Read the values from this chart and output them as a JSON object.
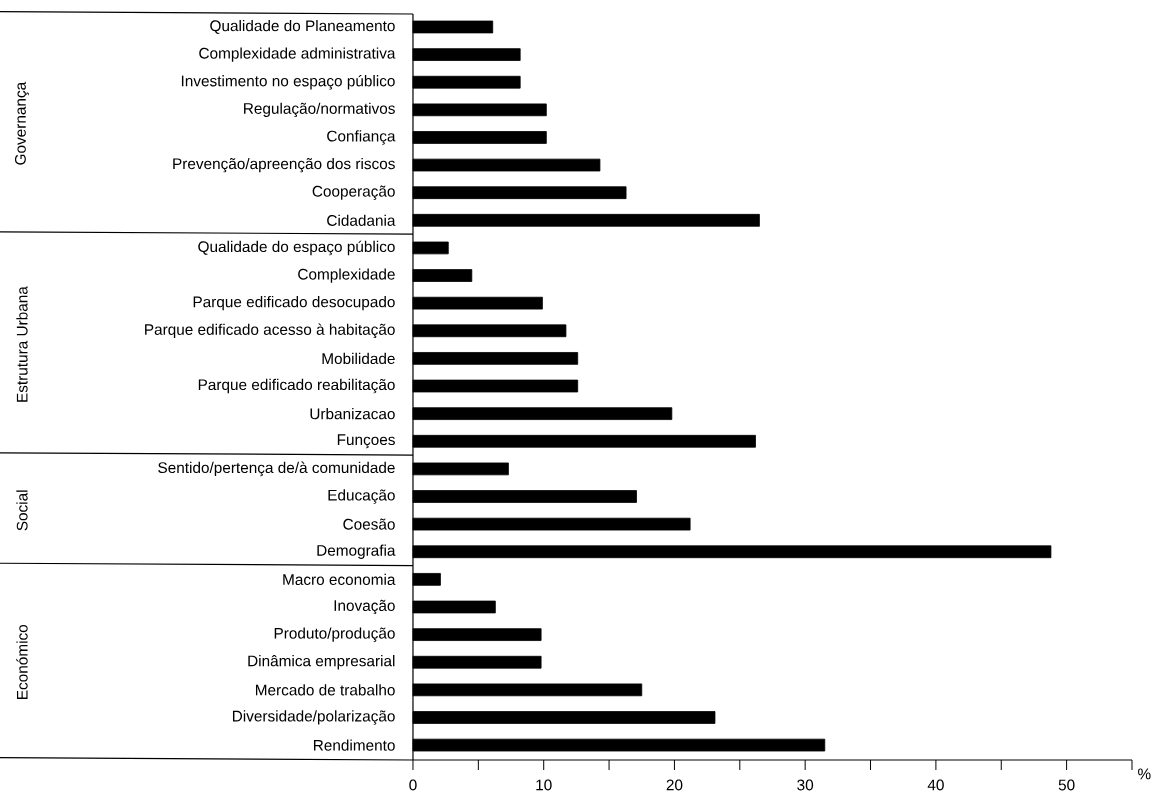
{
  "chart_data": {
    "type": "bar",
    "orientation": "horizontal",
    "xlabel": "%",
    "categories": [
      "Qualidade do Planeamento",
      "Complexidade administrativa",
      "Investimento no espaço público",
      "Regulação/normativos",
      "Confiança",
      "Prevenção/apreenção dos riscos",
      "Cooperação",
      "Cidadania",
      "Qualidade do espaço público",
      "Complexidade",
      "Parque edificado desocupado",
      "Parque edificado acesso à habitação",
      "Mobilidade",
      "Parque edificado reabilitação",
      "Urbanizacao",
      "Funçoes",
      "Sentido/pertença de/à comunidade",
      "Educação",
      "Coesão",
      "Demografia",
      "Macro economia",
      "Inovação",
      "Produto/produção",
      "Dinâmica empresarial",
      "Mercado de trabalho",
      "Diversidade/polarização",
      "Rendimento"
    ],
    "values": [
      6.1,
      8.2,
      8.2,
      10.2,
      10.2,
      14.3,
      16.3,
      26.5,
      2.7,
      4.5,
      9.9,
      11.7,
      12.6,
      12.6,
      19.8,
      26.2,
      7.3,
      17.1,
      21.2,
      48.8,
      2.1,
      6.3,
      9.8,
      9.8,
      17.5,
      23.1,
      31.5
    ],
    "color": "#000000",
    "xlim": [
      0,
      55
    ],
    "xticks": [
      0,
      {
        "value": 5,
        "label": null
      },
      10,
      {
        "value": 15,
        "label": null
      },
      20,
      {
        "value": 25,
        "label": null
      },
      30,
      {
        "value": 35,
        "label": null
      },
      40,
      {
        "value": 45,
        "label": null
      },
      50,
      {
        "value": 55,
        "label": null
      }
    ],
    "annotations": [
      "Governança",
      "Estrutura Urbana",
      "Social",
      "Económico"
    ],
    "grid": false
  }
}
